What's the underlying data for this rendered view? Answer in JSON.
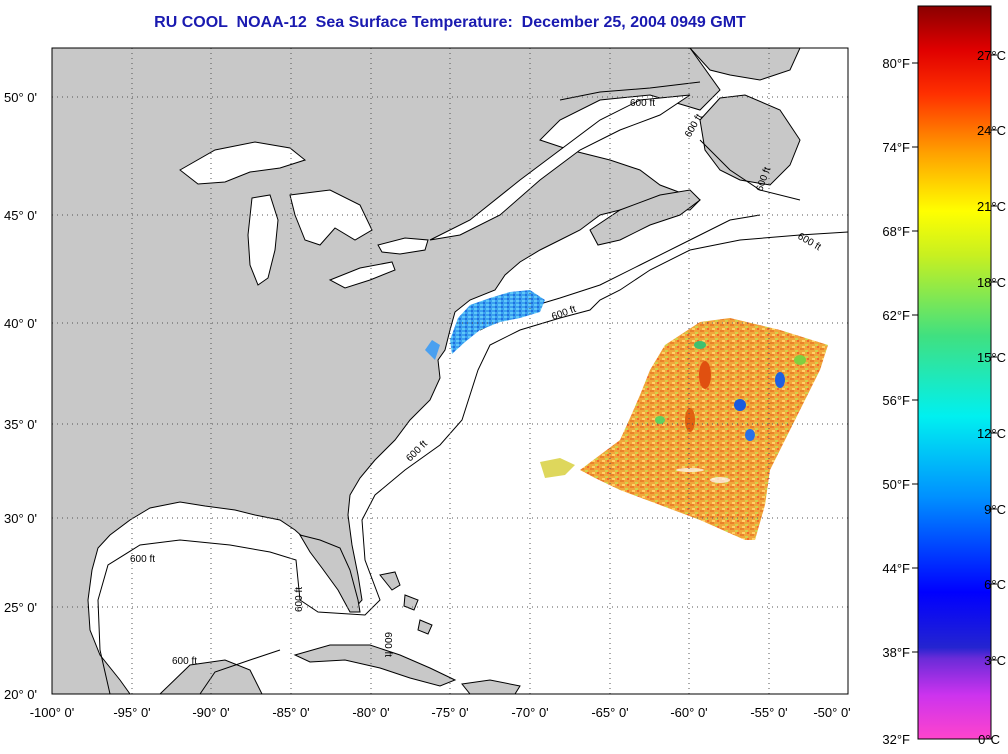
{
  "title": "RU COOL  NOAA-12  Sea Surface Temperature:  December 25, 2004 0949 GMT",
  "colors": {
    "land": "#c8c8c8",
    "ocean": "#ffffff",
    "title": "#1a1ab0"
  },
  "map": {
    "lon_range": [
      -100,
      -50
    ],
    "lat_range": [
      20,
      52
    ],
    "lat_ticks": [
      "50° 0'",
      "45° 0'",
      "40° 0'",
      "35° 0'",
      "30° 0'",
      "25° 0'",
      "20° 0'"
    ],
    "lon_ticks": [
      "-100° 0'",
      "-95° 0'",
      "-90° 0'",
      "-85° 0'",
      "-80° 0'",
      "-75° 0'",
      "-70° 0'",
      "-65° 0'",
      "-60° 0'",
      "-55° 0'",
      "-50° 0'"
    ],
    "isobath_labels": [
      "600 ft",
      "600 ft",
      "600 ft",
      "600 ft",
      "600 ft",
      "600 ft",
      "600 ft",
      "600 ft",
      "600 ft",
      "600 ft"
    ]
  },
  "colorbar": {
    "fahrenheit_labels": [
      "80°F",
      "74°F",
      "68°F",
      "62°F",
      "56°F",
      "50°F",
      "44°F",
      "38°F",
      "32°F"
    ],
    "celsius_labels": [
      "27°C",
      "24°C",
      "21°C",
      "18°C",
      "15°C",
      "12°C",
      "9°C",
      "6°C",
      "3°C",
      "0°C"
    ]
  }
}
